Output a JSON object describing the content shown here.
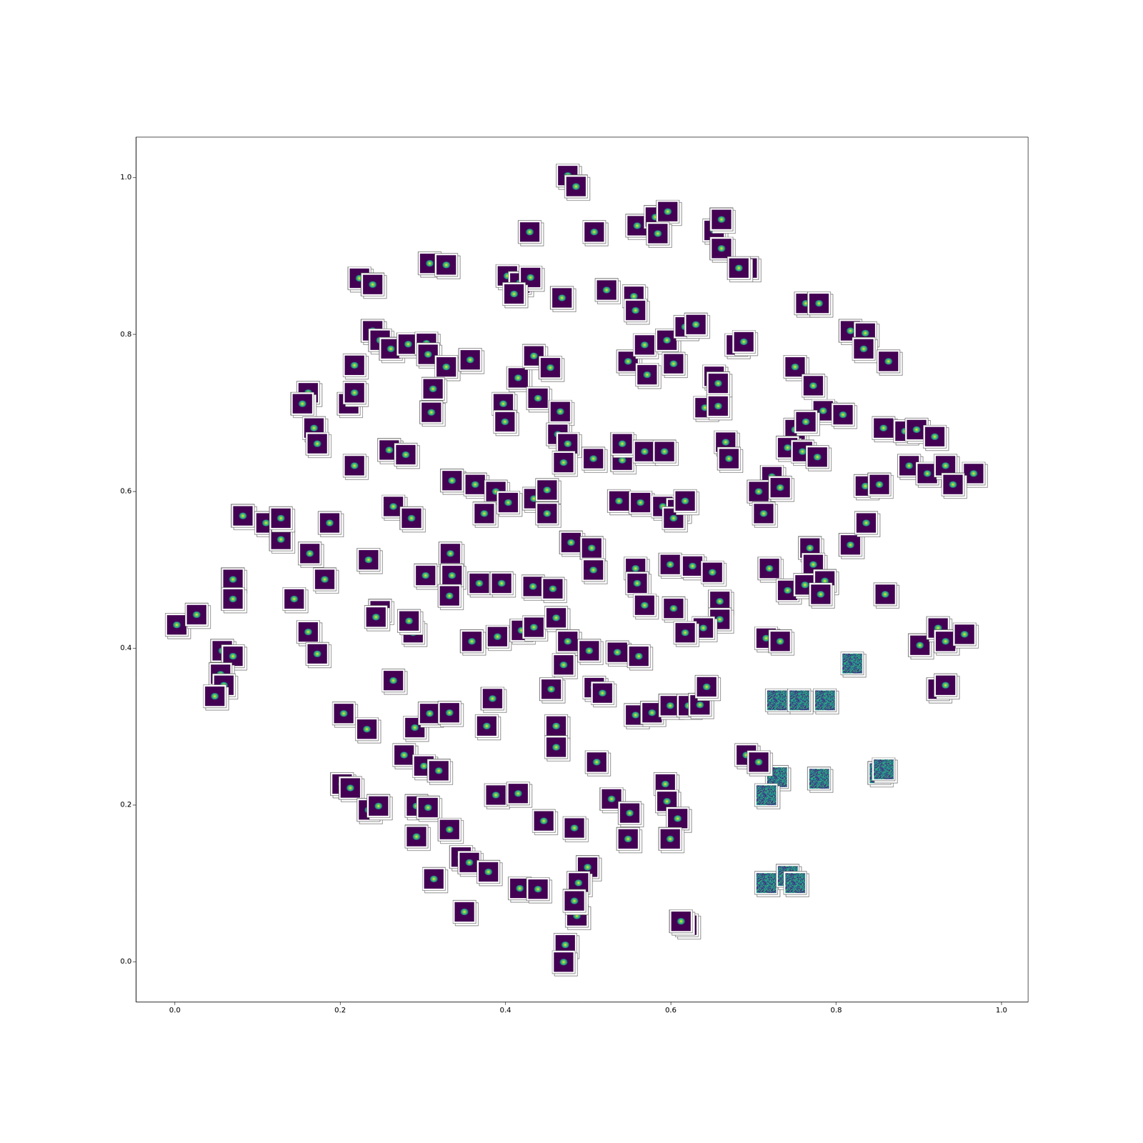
{
  "chart_data": {
    "type": "scatter",
    "xlim": [
      -0.047,
      1.032
    ],
    "ylim": [
      -0.051,
      1.052
    ],
    "xticks": [
      {
        "value": 0,
        "label": "0.0"
      },
      {
        "value": 0.2,
        "label": "0.2"
      },
      {
        "value": 0.4,
        "label": "0.4"
      },
      {
        "value": 0.6,
        "label": "0.6"
      },
      {
        "value": 0.8,
        "label": "0.8"
      },
      {
        "value": 1.0,
        "label": "1.0"
      }
    ],
    "yticks": [
      {
        "value": 0,
        "label": "0.0"
      },
      {
        "value": 0.2,
        "label": "0.2"
      },
      {
        "value": 0.4,
        "label": "0.4"
      },
      {
        "value": 0.6,
        "label": "0.6"
      },
      {
        "value": 0.8,
        "label": "0.8"
      },
      {
        "value": 1.0,
        "label": "1.0"
      }
    ],
    "grid": false,
    "series": [
      {
        "color": "#440154",
        "marker": "blob",
        "x": [
          0.477,
          0.487,
          0.431,
          0.509,
          0.561,
          0.583,
          0.598,
          0.586,
          0.654,
          0.663,
          0.663,
          0.694,
          0.684,
          0.225,
          0.241,
          0.31,
          0.33,
          0.404,
          0.419,
          0.432,
          0.412,
          0.47,
          0.524,
          0.557,
          0.559,
          0.765,
          0.781,
          0.819,
          0.837,
          0.835,
          0.865,
          0.241,
          0.25,
          0.219,
          0.263,
          0.284,
          0.306,
          0.308,
          0.33,
          0.359,
          0.314,
          0.312,
          0.417,
          0.436,
          0.456,
          0.55,
          0.57,
          0.597,
          0.573,
          0.605,
          0.619,
          0.632,
          0.681,
          0.69,
          0.654,
          0.659,
          0.643,
          0.659,
          0.752,
          0.774,
          0.786,
          0.81,
          0.752,
          0.765,
          0.743,
          0.761,
          0.779,
          0.859,
          0.885,
          0.899,
          0.921,
          0.89,
          0.912,
          0.934,
          0.968,
          0.943,
          0.837,
          0.854,
          0.163,
          0.156,
          0.212,
          0.219,
          0.17,
          0.174,
          0.219,
          0.261,
          0.281,
          0.337,
          0.365,
          0.39,
          0.376,
          0.405,
          0.436,
          0.452,
          0.452,
          0.399,
          0.401,
          0.441,
          0.468,
          0.465,
          0.477,
          0.472,
          0.508,
          0.543,
          0.543,
          0.57,
          0.594,
          0.668,
          0.672,
          0.724,
          0.708,
          0.734,
          0.714,
          0.539,
          0.565,
          0.592,
          0.61,
          0.605,
          0.619,
          0.084,
          0.112,
          0.13,
          0.189,
          0.13,
          0.165,
          0.183,
          0.072,
          0.072,
          0.146,
          0.236,
          0.266,
          0.288,
          0.305,
          0.335,
          0.337,
          0.334,
          0.37,
          0.397,
          0.435,
          0.459,
          0.481,
          0.506,
          0.508,
          0.559,
          0.561,
          0.601,
          0.628,
          0.652,
          0.57,
          0.605,
          0.661,
          0.661,
          0.641,
          0.619,
          0.721,
          0.743,
          0.77,
          0.774,
          0.764,
          0.788,
          0.783,
          0.819,
          0.838,
          0.861,
          0.004,
          0.028,
          0.059,
          0.072,
          0.057,
          0.061,
          0.05,
          0.163,
          0.174,
          0.25,
          0.245,
          0.29,
          0.285,
          0.361,
          0.392,
          0.421,
          0.436,
          0.463,
          0.477,
          0.503,
          0.472,
          0.537,
          0.563,
          0.717,
          0.734,
          0.903,
          0.925,
          0.934,
          0.957,
          0.925,
          0.934,
          0.266,
          0.457,
          0.509,
          0.519,
          0.559,
          0.579,
          0.601,
          0.623,
          0.637,
          0.645,
          0.206,
          0.234,
          0.292,
          0.31,
          0.334,
          0.386,
          0.379,
          0.463,
          0.463,
          0.279,
          0.303,
          0.321,
          0.512,
          0.693,
          0.708,
          0.204,
          0.214,
          0.236,
          0.248,
          0.294,
          0.308,
          0.334,
          0.294,
          0.39,
          0.417,
          0.448,
          0.485,
          0.53,
          0.552,
          0.55,
          0.595,
          0.597,
          0.61,
          0.601,
          0.348,
          0.358,
          0.381,
          0.315,
          0.419,
          0.441,
          0.501,
          0.49,
          0.488,
          0.485,
          0.352,
          0.621,
          0.614,
          0.474,
          0.472
        ],
        "values": [
          1.001,
          0.987,
          0.929,
          0.929,
          0.937,
          0.948,
          0.955,
          0.927,
          0.931,
          0.945,
          0.908,
          0.883,
          0.883,
          0.87,
          0.862,
          0.889,
          0.887,
          0.873,
          0.864,
          0.871,
          0.85,
          0.845,
          0.855,
          0.847,
          0.829,
          0.838,
          0.838,
          0.803,
          0.8,
          0.78,
          0.764,
          0.803,
          0.791,
          0.759,
          0.78,
          0.786,
          0.787,
          0.773,
          0.757,
          0.766,
          0.729,
          0.699,
          0.743,
          0.771,
          0.756,
          0.764,
          0.785,
          0.791,
          0.747,
          0.761,
          0.808,
          0.811,
          0.785,
          0.789,
          0.745,
          0.736,
          0.705,
          0.707,
          0.757,
          0.733,
          0.701,
          0.696,
          0.677,
          0.687,
          0.654,
          0.649,
          0.642,
          0.679,
          0.675,
          0.677,
          0.668,
          0.631,
          0.621,
          0.631,
          0.621,
          0.607,
          0.605,
          0.607,
          0.724,
          0.71,
          0.71,
          0.724,
          0.679,
          0.659,
          0.631,
          0.651,
          0.645,
          0.612,
          0.607,
          0.598,
          0.57,
          0.584,
          0.589,
          0.6,
          0.57,
          0.71,
          0.687,
          0.717,
          0.7,
          0.671,
          0.659,
          0.635,
          0.64,
          0.638,
          0.659,
          0.649,
          0.649,
          0.661,
          0.64,
          0.617,
          0.598,
          0.603,
          0.57,
          0.586,
          0.584,
          0.579,
          0.575,
          0.564,
          0.586,
          0.567,
          0.558,
          0.537,
          0.558,
          0.564,
          0.519,
          0.486,
          0.486,
          0.461,
          0.461,
          0.511,
          0.579,
          0.564,
          0.491,
          0.519,
          0.491,
          0.465,
          0.481,
          0.481,
          0.477,
          0.474,
          0.533,
          0.526,
          0.498,
          0.5,
          0.481,
          0.505,
          0.503,
          0.495,
          0.453,
          0.449,
          0.458,
          0.435,
          0.424,
          0.418,
          0.5,
          0.472,
          0.526,
          0.505,
          0.479,
          0.484,
          0.467,
          0.53,
          0.558,
          0.467,
          0.428,
          0.441,
          0.395,
          0.388,
          0.365,
          0.351,
          0.337,
          0.419,
          0.391,
          0.446,
          0.438,
          0.418,
          0.433,
          0.407,
          0.413,
          0.421,
          0.425,
          0.437,
          0.407,
          0.395,
          0.377,
          0.393,
          0.388,
          0.411,
          0.407,
          0.402,
          0.424,
          0.407,
          0.416,
          0.346,
          0.351,
          0.357,
          0.346,
          0.348,
          0.341,
          0.313,
          0.316,
          0.325,
          0.325,
          0.326,
          0.349,
          0.315,
          0.295,
          0.297,
          0.315,
          0.316,
          0.334,
          0.299,
          0.299,
          0.272,
          0.262,
          0.248,
          0.242,
          0.253,
          0.262,
          0.253,
          0.225,
          0.22,
          0.192,
          0.197,
          0.197,
          0.195,
          0.167,
          0.158,
          0.211,
          0.213,
          0.178,
          0.169,
          0.206,
          0.188,
          0.155,
          0.225,
          0.203,
          0.181,
          0.155,
          0.132,
          0.125,
          0.113,
          0.104,
          0.092,
          0.091,
          0.119,
          0.099,
          0.057,
          0.076,
          0.062,
          0.045,
          0.05,
          0.02,
          -0.002
        ]
      },
      {
        "color": "#31688e",
        "marker": "noise",
        "x": [
          0.821,
          0.73,
          0.757,
          0.788,
          0.73,
          0.717,
          0.781,
          0.854,
          0.859,
          0.717,
          0.743,
          0.752
        ],
        "values": [
          0.379,
          0.332,
          0.332,
          0.332,
          0.234,
          0.211,
          0.232,
          0.239,
          0.244,
          0.099,
          0.108,
          0.099
        ]
      }
    ]
  }
}
